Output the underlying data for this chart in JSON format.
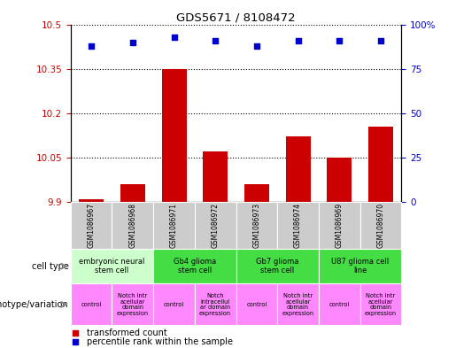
{
  "title": "GDS5671 / 8108472",
  "samples": [
    "GSM1086967",
    "GSM1086968",
    "GSM1086971",
    "GSM1086972",
    "GSM1086973",
    "GSM1086974",
    "GSM1086969",
    "GSM1086970"
  ],
  "transformed_counts": [
    9.91,
    9.96,
    10.35,
    10.07,
    9.96,
    10.12,
    10.05,
    10.155
  ],
  "percentile_ranks": [
    88,
    90,
    93,
    91,
    88,
    91,
    91,
    91
  ],
  "ylim_left": [
    9.9,
    10.5
  ],
  "ylim_right": [
    0,
    100
  ],
  "yticks_left": [
    9.9,
    10.05,
    10.2,
    10.35,
    10.5
  ],
  "yticks_right": [
    0,
    25,
    50,
    75,
    100
  ],
  "ytick_labels_left": [
    "9.9",
    "10.05",
    "10.2",
    "10.35",
    "10.5"
  ],
  "ytick_labels_right": [
    "0",
    "25",
    "50",
    "75",
    "100%"
  ],
  "bar_color": "#cc0000",
  "scatter_color": "#0000cc",
  "cell_type_row": [
    {
      "label": "embryonic neural\nstem cell",
      "start": 0,
      "end": 2,
      "color": "#ccffcc"
    },
    {
      "label": "Gb4 glioma\nstem cell",
      "start": 2,
      "end": 4,
      "color": "#44dd44"
    },
    {
      "label": "Gb7 glioma\nstem cell",
      "start": 4,
      "end": 6,
      "color": "#44dd44"
    },
    {
      "label": "U87 glioma cell\nline",
      "start": 6,
      "end": 8,
      "color": "#44dd44"
    }
  ],
  "genotype_row": [
    {
      "label": "control",
      "start": 0,
      "end": 1
    },
    {
      "label": "Notch intr\nacellular\ndomain\nexpression",
      "start": 1,
      "end": 2
    },
    {
      "label": "control",
      "start": 2,
      "end": 3
    },
    {
      "label": "Notch\nintracellul\nar domain\nexpression",
      "start": 3,
      "end": 4
    },
    {
      "label": "control",
      "start": 4,
      "end": 5
    },
    {
      "label": "Notch intr\nacellular\ndomain\nexpression",
      "start": 5,
      "end": 6
    },
    {
      "label": "control",
      "start": 6,
      "end": 7
    },
    {
      "label": "Notch intr\nacellular\ndomain\nexpression",
      "start": 7,
      "end": 8
    }
  ],
  "cell_type_label": "cell type",
  "genotype_label": "genotype/variation",
  "legend_bar_label": "transformed count",
  "legend_scatter_label": "percentile rank within the sample",
  "label_color_left": "#cc0000",
  "label_color_right": "#0000cc",
  "sample_bg": "#cccccc",
  "genotype_bg": "#ff88ff"
}
